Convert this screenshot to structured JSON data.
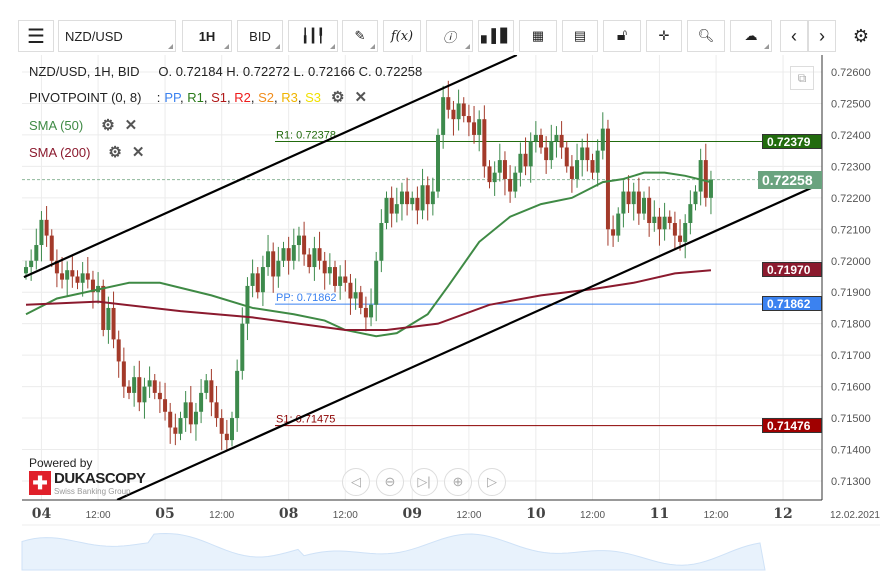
{
  "toolbar": {
    "menu_icon": "hamburger-icon",
    "symbol": "NZD/USD",
    "timeframe": "1H",
    "side": "BID",
    "icons": [
      "candlestick-type-icon",
      "pencil-icon",
      "function-icon",
      "info-icon",
      "volume-bars-icon",
      "calendar-icon",
      "news-icon",
      "lock-icon",
      "crosshair-icon",
      "zoom-search-icon",
      "cloud-upload-icon",
      "chevron-left-icon",
      "chevron-right-icon",
      "gear-icon"
    ],
    "function_label": "f(x)"
  },
  "legend": {
    "title": "NZD/USD, 1H, BID",
    "ohlc": "O. 0.72184 H. 0.72272 L. 0.72166 C. 0.72258",
    "pivot": "PIVOTPOINT (0, 8)",
    "pivot_sep": ":",
    "pivot_items": [
      {
        "t": "PP",
        "c": "#3b82f0"
      },
      {
        "t": "R1",
        "c": "#2a7a1a"
      },
      {
        "t": "S1",
        "c": "#b01818"
      },
      {
        "t": "R2",
        "c": "#ee1c1c"
      },
      {
        "t": "S2",
        "c": "#f08c1a"
      },
      {
        "t": "R3",
        "c": "#f0b400"
      },
      {
        "t": "S3",
        "c": "#f0e000"
      }
    ],
    "sma50": "SMA (50)",
    "sma200": "SMA (200)"
  },
  "levels": {
    "r1_label": "R1: 0.72378",
    "pp_label": "PP: 0.71862",
    "s1_label": "S1: 0.71475"
  },
  "price_tags": [
    {
      "v": 0.72379,
      "t": "0.72379",
      "c": "#226b0e"
    },
    {
      "v": 0.72258,
      "t": "0.72258",
      "c": "#6aa37f"
    },
    {
      "v": 0.7197,
      "t": "0.71970",
      "c": "#8b1a2e"
    },
    {
      "v": 0.71862,
      "t": "0.71862",
      "c": "#3b82f0"
    },
    {
      "v": 0.71476,
      "t": "0.71476",
      "c": "#a00000"
    }
  ],
  "y_ticks": [
    "0.72600",
    "0.72500",
    "0.72400",
    "0.72300",
    "0.72200",
    "0.72100",
    "0.72000",
    "0.71900",
    "0.71800",
    "0.71700",
    "0.71600",
    "0.71500",
    "0.71400",
    "0.71300"
  ],
  "x_labels": [
    {
      "t": "04",
      "i": 3,
      "major": true
    },
    {
      "t": "12:00",
      "i": 14
    },
    {
      "t": "05",
      "i": 27,
      "major": true
    },
    {
      "t": "12:00",
      "i": 38
    },
    {
      "t": "08",
      "i": 51,
      "major": true
    },
    {
      "t": "12:00",
      "i": 62
    },
    {
      "t": "09",
      "i": 75,
      "major": true
    },
    {
      "t": "12:00",
      "i": 86
    },
    {
      "t": "10",
      "i": 99,
      "major": true
    },
    {
      "t": "12:00",
      "i": 110
    },
    {
      "t": "11",
      "i": 123,
      "major": true
    },
    {
      "t": "12:00",
      "i": 134
    },
    {
      "t": "12",
      "i": 147,
      "major": true
    }
  ],
  "date_label": "12.02.2021",
  "powered_by": "Powered by",
  "brand": "DUKASCOPY",
  "brand_sub": "Swiss Banking Group",
  "colors": {
    "up": "#3d8a4c",
    "down": "#a33a2a",
    "sma50": "#3f8a45",
    "sma200": "#8b1a2e",
    "trend": "#000000"
  },
  "chart_data": {
    "type": "candlestick",
    "ylim": [
      0.7124,
      0.7266
    ],
    "first_open": 0.7196,
    "closes": [
      0.7198,
      0.72,
      0.7205,
      0.7213,
      0.7208,
      0.72,
      0.7196,
      0.7194,
      0.7197,
      0.7195,
      0.7193,
      0.7196,
      0.7194,
      0.719,
      0.7192,
      0.7178,
      0.7185,
      0.7175,
      0.7168,
      0.716,
      0.7158,
      0.7163,
      0.7155,
      0.716,
      0.7162,
      0.7158,
      0.7156,
      0.7152,
      0.7147,
      0.7145,
      0.715,
      0.7155,
      0.7148,
      0.7152,
      0.7158,
      0.7162,
      0.7155,
      0.715,
      0.7145,
      0.7143,
      0.715,
      0.7165,
      0.718,
      0.7192,
      0.7196,
      0.719,
      0.7198,
      0.7203,
      0.7195,
      0.72,
      0.7204,
      0.72,
      0.7205,
      0.7208,
      0.7202,
      0.7198,
      0.7204,
      0.72,
      0.7196,
      0.7198,
      0.7192,
      0.7195,
      0.7193,
      0.7188,
      0.719,
      0.7185,
      0.7182,
      0.7186,
      0.72,
      0.7212,
      0.722,
      0.7215,
      0.7218,
      0.7222,
      0.7218,
      0.722,
      0.7216,
      0.7224,
      0.7218,
      0.7222,
      0.724,
      0.7252,
      0.7248,
      0.7245,
      0.725,
      0.7246,
      0.7244,
      0.724,
      0.7245,
      0.723,
      0.7225,
      0.7228,
      0.7232,
      0.7226,
      0.7222,
      0.7228,
      0.7234,
      0.723,
      0.7238,
      0.724,
      0.7236,
      0.7232,
      0.7238,
      0.724,
      0.7236,
      0.723,
      0.7226,
      0.7232,
      0.7236,
      0.7232,
      0.7228,
      0.7235,
      0.7242,
      0.721,
      0.7208,
      0.7215,
      0.7222,
      0.7218,
      0.7222,
      0.7215,
      0.722,
      0.7212,
      0.7214,
      0.721,
      0.7214,
      0.7212,
      0.7208,
      0.7206,
      0.7212,
      0.7218,
      0.7222,
      0.7232,
      0.722,
      0.72258
    ],
    "sma50": [
      [
        0,
        0.7183
      ],
      [
        6,
        0.7188
      ],
      [
        20,
        0.7193
      ],
      [
        26,
        0.7193
      ],
      [
        36,
        0.7189
      ],
      [
        44,
        0.7185
      ],
      [
        52,
        0.7183
      ],
      [
        58,
        0.7181
      ],
      [
        62,
        0.7178
      ],
      [
        68,
        0.7176
      ],
      [
        72,
        0.7177
      ],
      [
        78,
        0.7183
      ],
      [
        82,
        0.7192
      ],
      [
        88,
        0.7206
      ],
      [
        94,
        0.7214
      ],
      [
        100,
        0.7218
      ],
      [
        106,
        0.722
      ],
      [
        112,
        0.7225
      ],
      [
        116,
        0.7226
      ],
      [
        120,
        0.7228
      ],
      [
        124,
        0.7228
      ],
      [
        128,
        0.7227
      ],
      [
        133,
        0.7225
      ]
    ],
    "sma200": [
      [
        0,
        0.7186
      ],
      [
        14,
        0.7187
      ],
      [
        30,
        0.7184
      ],
      [
        44,
        0.7182
      ],
      [
        62,
        0.7178
      ],
      [
        70,
        0.7178
      ],
      [
        80,
        0.718
      ],
      [
        90,
        0.7186
      ],
      [
        100,
        0.7189
      ],
      [
        110,
        0.7191
      ],
      [
        118,
        0.7193
      ],
      [
        126,
        0.7196
      ],
      [
        133,
        0.7197
      ]
    ],
    "trendlines": [
      [
        [
          -0.4,
          0.71948
        ],
        [
          95.3,
          0.72654
        ]
      ],
      [
        [
          17.7,
          0.7124
        ],
        [
          155,
          0.7225
        ]
      ]
    ],
    "levels": {
      "r1": 0.72379,
      "pp": 0.71862,
      "s1": 0.71476
    }
  }
}
